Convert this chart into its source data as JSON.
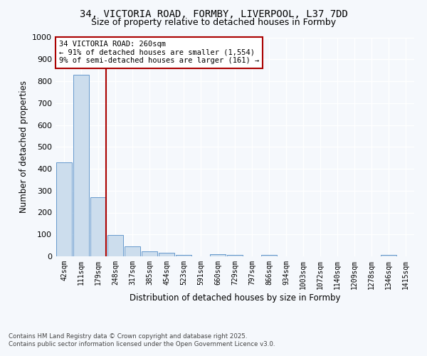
{
  "title_line1": "34, VICTORIA ROAD, FORMBY, LIVERPOOL, L37 7DD",
  "title_line2": "Size of property relative to detached houses in Formby",
  "xlabel": "Distribution of detached houses by size in Formby",
  "ylabel": "Number of detached properties",
  "bins": [
    "42sqm",
    "111sqm",
    "179sqm",
    "248sqm",
    "317sqm",
    "385sqm",
    "454sqm",
    "523sqm",
    "591sqm",
    "660sqm",
    "729sqm",
    "797sqm",
    "866sqm",
    "934sqm",
    "1003sqm",
    "1072sqm",
    "1140sqm",
    "1209sqm",
    "1278sqm",
    "1346sqm",
    "1415sqm"
  ],
  "values": [
    430,
    830,
    270,
    97,
    47,
    22,
    16,
    8,
    0,
    9,
    8,
    0,
    5,
    0,
    0,
    0,
    0,
    0,
    0,
    7,
    0
  ],
  "bar_color": "#ccdded",
  "bar_edge_color": "#6699cc",
  "vline_color": "#aa0000",
  "annotation_text": "34 VICTORIA ROAD: 260sqm\n← 91% of detached houses are smaller (1,554)\n9% of semi-detached houses are larger (161) →",
  "annotation_box_facecolor": "#ffffff",
  "annotation_box_edgecolor": "#aa0000",
  "ylim": [
    0,
    1000
  ],
  "yticks": [
    0,
    100,
    200,
    300,
    400,
    500,
    600,
    700,
    800,
    900,
    1000
  ],
  "fig_facecolor": "#f5f8fc",
  "plot_facecolor": "#f5f8fc",
  "grid_color": "#dddddd",
  "footer_line1": "Contains HM Land Registry data © Crown copyright and database right 2025.",
  "footer_line2": "Contains public sector information licensed under the Open Government Licence v3.0."
}
